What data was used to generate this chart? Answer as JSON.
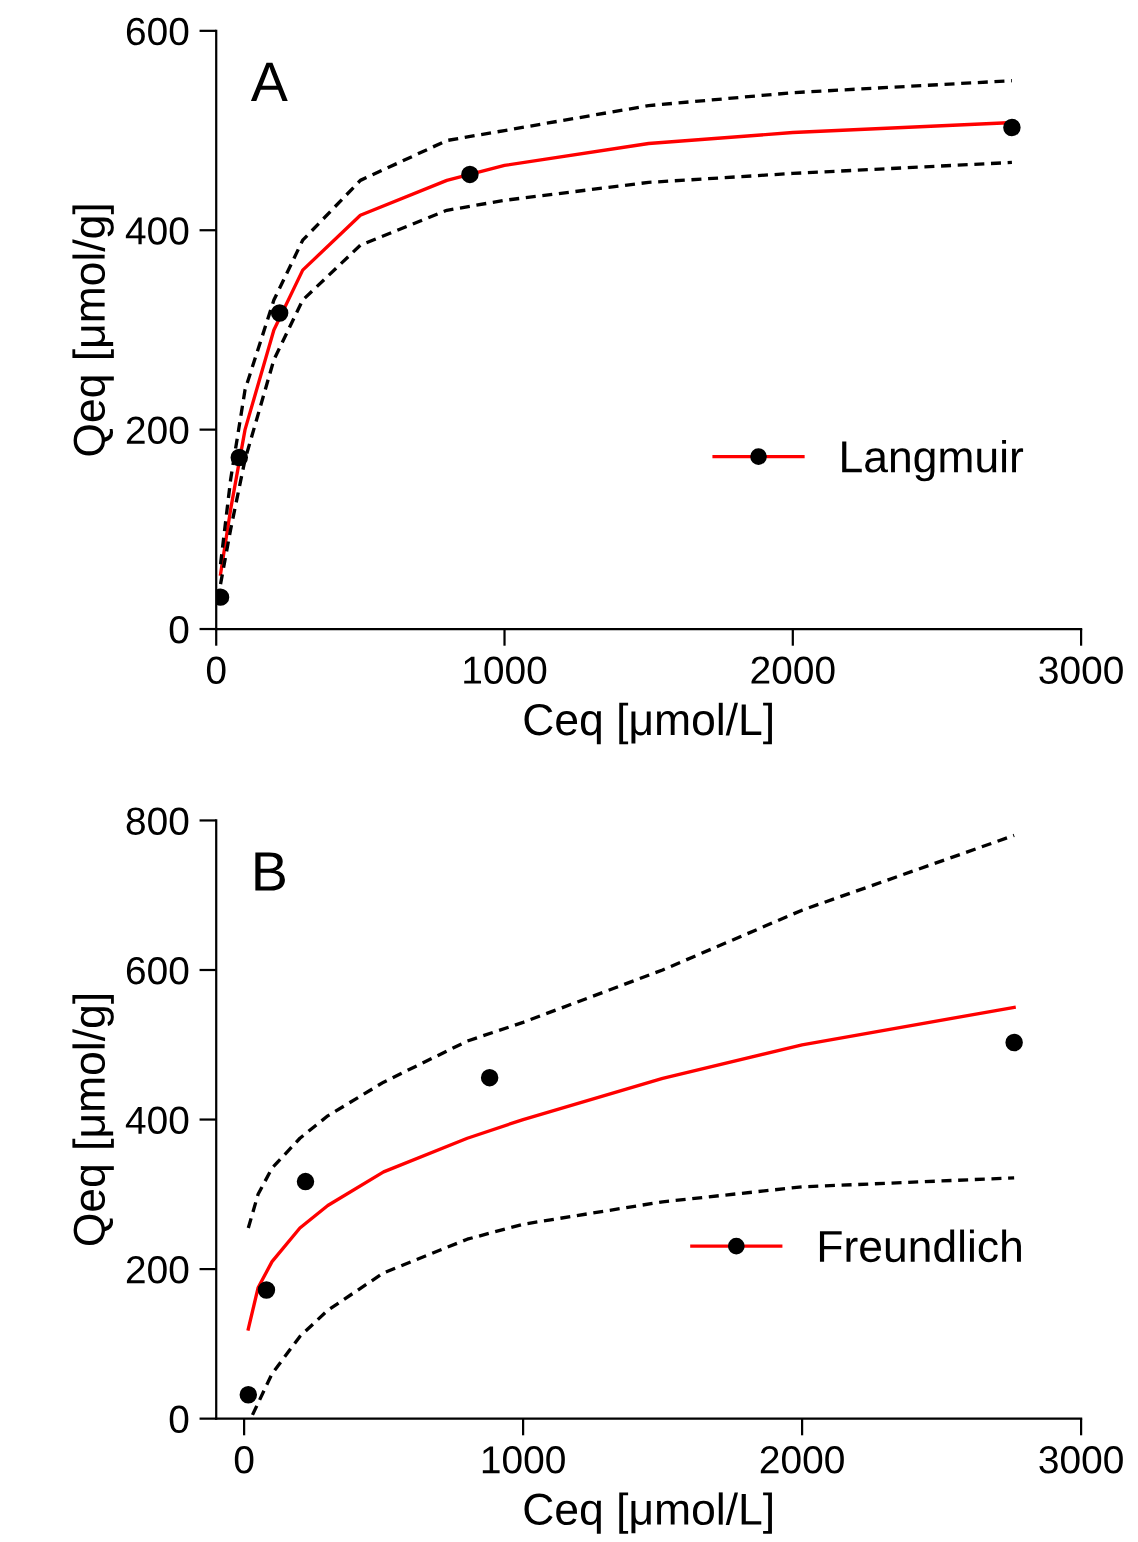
{
  "chart_data": [
    {
      "type": "line",
      "xlabel": "Ceq [μmol/L]",
      "ylabel": "Qeq [μmol/g]",
      "annotations": [
        "A"
      ],
      "xlim": [
        0,
        3000
      ],
      "ylim": [
        0,
        600
      ],
      "xticks": [
        0,
        1000,
        2000,
        3000
      ],
      "yticks": [
        0,
        200,
        400,
        600
      ],
      "grid": false,
      "legend": "lower right",
      "series": [
        {
          "name": "Langmuir",
          "color": "#ff0000",
          "line_style": "solid",
          "x": [
            15,
            50,
            100,
            200,
            300,
            500,
            800,
            1000,
            1500,
            2000,
            2760
          ],
          "values": [
            55,
            120,
            200,
            300,
            360,
            415,
            450,
            465,
            487,
            498,
            508
          ]
        },
        {
          "type": "line",
          "color": "#000000",
          "line_style": "dashed",
          "x": [
            15,
            50,
            100,
            200,
            300,
            500,
            800,
            1000,
            1500,
            2000,
            2760
          ],
          "values": [
            65,
            150,
            240,
            330,
            390,
            450,
            490,
            500,
            525,
            538,
            550
          ]
        },
        {
          "type": "line",
          "color": "#000000",
          "line_style": "dashed",
          "x": [
            15,
            50,
            100,
            200,
            300,
            500,
            800,
            1000,
            1500,
            2000,
            2760
          ],
          "values": [
            45,
            100,
            170,
            270,
            330,
            385,
            420,
            430,
            448,
            457,
            468
          ]
        },
        {
          "type": "scatter",
          "color": "#000000",
          "marker": "circle",
          "x": [
            15,
            80,
            220,
            880,
            2760
          ],
          "values": [
            32,
            172,
            317,
            456,
            503
          ]
        }
      ]
    },
    {
      "type": "line",
      "xlabel": "Ceq [μmol/L]",
      "ylabel": "Qeq [μmol/g]",
      "annotations": [
        "B"
      ],
      "xlim": [
        -100,
        3000
      ],
      "ylim": [
        0,
        800
      ],
      "xticks": [
        0,
        1000,
        2000,
        3000
      ],
      "yticks": [
        0,
        200,
        400,
        600,
        800
      ],
      "grid": false,
      "legend": "lower right",
      "series": [
        {
          "name": "Freundlich",
          "color": "#ff0000",
          "line_style": "solid",
          "x": [
            15,
            50,
            100,
            200,
            300,
            500,
            800,
            1000,
            1500,
            2000,
            2760
          ],
          "values": [
            120,
            175,
            210,
            255,
            285,
            330,
            375,
            400,
            455,
            500,
            550
          ]
        },
        {
          "type": "line",
          "color": "#000000",
          "line_style": "dashed",
          "x": [
            15,
            50,
            100,
            200,
            300,
            500,
            800,
            1000,
            1500,
            2000,
            2760
          ],
          "values": [
            255,
            300,
            335,
            375,
            405,
            450,
            505,
            530,
            600,
            680,
            780
          ]
        },
        {
          "type": "line",
          "color": "#000000",
          "line_style": "dashed",
          "x": [
            30,
            100,
            200,
            300,
            500,
            800,
            1000,
            1500,
            2000,
            2760
          ],
          "values": [
            5,
            60,
            110,
            145,
            195,
            240,
            260,
            290,
            310,
            322
          ]
        },
        {
          "type": "scatter",
          "color": "#000000",
          "marker": "circle",
          "x": [
            15,
            80,
            220,
            880,
            2760
          ],
          "values": [
            32,
            172,
            317,
            456,
            503
          ]
        }
      ]
    }
  ]
}
